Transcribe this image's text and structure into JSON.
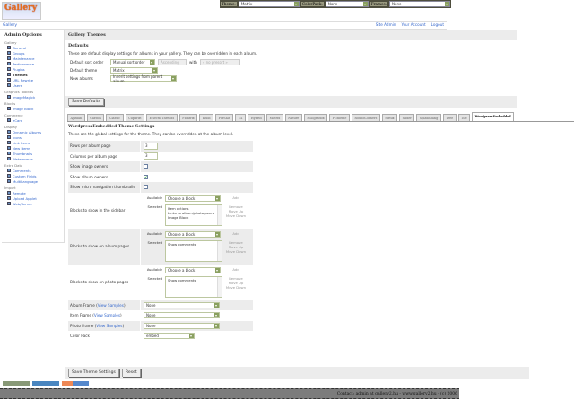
{
  "topbar": {
    "theme_label": "Theme:",
    "theme_value": "Matrix",
    "colorpack_label": "ColorPack:",
    "colorpack_value": "None",
    "frames_label": "Frames:",
    "frames_value": "None"
  },
  "logo": {
    "text": "Gallery"
  },
  "breadcrumb": "Gallery",
  "toplinks": [
    "Site Admin",
    "Your Account",
    "Logout"
  ],
  "sidebar": {
    "title": "Admin Options",
    "groups": [
      {
        "label": "Gallery",
        "items": [
          "General",
          "Groups",
          "Maintenance",
          "Performance",
          "Plugins",
          "Themes",
          "URL Rewrite",
          "Users"
        ]
      },
      {
        "label": "Graphics Toolkits",
        "items": [
          "ImageMagick"
        ]
      },
      {
        "label": "Blocks",
        "items": [
          "Image Block"
        ]
      },
      {
        "label": "Commerce",
        "items": [
          "eCard"
        ]
      },
      {
        "label": "Display",
        "items": [
          "Dynamic Albums",
          "Icons",
          "Link Items",
          "New Items",
          "Thumbnails",
          "Watermarks"
        ]
      },
      {
        "label": "Extra Data",
        "items": [
          "Comments",
          "Custom Fields",
          "MultiLanguage"
        ]
      },
      {
        "label": "Import",
        "items": [
          "Remote",
          "Upload Applet",
          "Web/Server"
        ]
      }
    ],
    "current": "Themes"
  },
  "header": {
    "title": "Gallery Themes"
  },
  "defaults": {
    "title": "Defaults",
    "description": "These are default display settings for albums in your gallery. They can be overridden in each album.",
    "sort_label": "Default sort order",
    "sort_value": "Manual sort order",
    "direction_value": "Ascending",
    "with_label": "with",
    "presort_value": "« no presort »",
    "theme_label": "Default theme",
    "theme_value": "Matrix",
    "new_albums_label": "New albums",
    "new_albums_value": "Inherit settings from parent album",
    "save_label": "Save Defaults"
  },
  "tabs": [
    "Ajaxian",
    "Carbon",
    "Classic",
    "Cupdrift",
    "EclecticThreads",
    "Floatrix",
    "Fluid",
    "ForSale",
    "G1",
    "Hybrid",
    "Matrix",
    "Nature",
    "PGlightBox",
    "PGtheme",
    "RoundCorners",
    "Siriux",
    "Slider",
    "SplashBang",
    "Tree",
    "Tile",
    "WordpressEmbedded"
  ],
  "active_tab": "WordpressEmbedded",
  "theme_settings": {
    "title": "WordpressEmbedded Theme Settings",
    "description": "These are the global settings for the theme. They can be overridden at the album level.",
    "rows_label": "Rows per album page",
    "rows_value": "3",
    "cols_label": "Columns per album page",
    "cols_value": "3",
    "image_owners_label": "Show image owners",
    "image_owners": false,
    "album_owners_label": "Show album owners",
    "album_owners": true,
    "micro_nav_label": "Show micro navigation thumbnails",
    "micro_nav": false,
    "available_label": "Available",
    "selected_label": "Selected",
    "choose_block": "Choose a block",
    "add": "Add",
    "remove": "Remove",
    "move_up": "Move Up",
    "move_down": "Move Down",
    "sidebar_blocks_label": "Blocks to show in the sidebar",
    "sidebar_blocks": [
      "Item actions",
      "Links to album/photo peers",
      "Image Block"
    ],
    "album_blocks_label": "Blocks to show on album pages",
    "album_blocks": [
      "Show comments"
    ],
    "photo_blocks_label": "Blocks to show on photo pages",
    "photo_blocks": [
      "Show comments"
    ],
    "view_samples": "View Samples",
    "album_frame_label": "Album Frame",
    "album_frame_value": "None",
    "item_frame_label": "Item Frame",
    "item_frame_value": "None",
    "photo_frame_label": "Photo Frame",
    "photo_frame_value": "None",
    "color_pack_label": "Color Pack",
    "color_pack_value": "embed",
    "save_label": "Save Theme Settings",
    "reset_label": "Reset"
  },
  "footer": "Contact: admin at gallery2.hu - www.gallery2.hu - (c) 2006",
  "colors": {
    "link": "#3366cc",
    "topbar": "#4d4d3d",
    "panel": "#ececec",
    "footer": "#7c7c7c"
  }
}
